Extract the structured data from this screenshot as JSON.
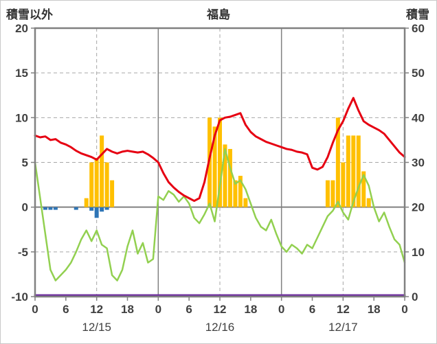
{
  "chart_data": {
    "type": "mixed",
    "title": "福島",
    "left_axis_label": "積雪以外",
    "right_axis_label": "積雪",
    "left_axis": {
      "min": -10,
      "max": 20,
      "ticks": [
        20,
        15,
        10,
        5,
        0,
        -5,
        -10
      ]
    },
    "right_axis": {
      "min": 0,
      "max": 60,
      "ticks": [
        60,
        50,
        40,
        30,
        20,
        10,
        0
      ]
    },
    "x_axis": {
      "hours_total": 72,
      "tick_hours": [
        0,
        6,
        12,
        18,
        24,
        30,
        36,
        42,
        48,
        54,
        60,
        66,
        72
      ],
      "tick_labels": [
        "0",
        "6",
        "12",
        "18",
        "0",
        "6",
        "12",
        "18",
        "0",
        "6",
        "12",
        "18",
        "0"
      ],
      "day_labels": [
        "12/15",
        "12/16",
        "12/17"
      ],
      "day_label_hours": [
        12,
        36,
        60
      ]
    },
    "grid": {
      "h_dashed": [
        15,
        10,
        5,
        -5
      ],
      "v_dashed": [
        12,
        36,
        60
      ],
      "v_solid": [
        24,
        48
      ]
    },
    "colors": {
      "frame": "#808080",
      "grid_dashed": "#a6a6a6",
      "red_line": "#e60012",
      "green_line": "#92d050",
      "orange_bars": "#ffc000",
      "blue_bars": "#2e75b6",
      "purple_line": "#7030a0"
    },
    "series": [
      {
        "name": "orange-bars",
        "type": "bar",
        "axis": "left",
        "color": "#ffc000",
        "values": [
          0,
          0,
          0,
          0,
          0,
          0,
          0,
          0,
          0,
          0,
          1,
          5,
          5.5,
          8,
          5,
          3,
          0,
          0,
          0,
          0,
          0,
          0,
          0,
          0,
          0,
          0,
          0,
          0,
          0,
          0,
          0,
          0,
          0,
          0,
          10,
          9,
          10,
          7,
          6.5,
          3,
          3.5,
          1,
          0,
          0,
          0,
          0,
          0,
          0,
          0,
          0,
          0,
          0,
          0,
          0,
          0,
          0,
          0,
          3,
          3,
          10,
          5,
          8,
          8,
          8,
          4,
          1,
          0,
          0,
          0,
          0,
          0,
          0,
          0
        ]
      },
      {
        "name": "blue-bars",
        "type": "bar",
        "axis": "left",
        "color": "#2e75b6",
        "values": [
          0,
          0,
          -0.3,
          -0.3,
          -0.3,
          0,
          0,
          0,
          -0.3,
          0,
          0,
          -0.4,
          -1.2,
          -0.5,
          -0.3,
          0,
          0,
          0,
          0,
          0,
          0,
          0,
          0,
          0,
          0,
          0,
          0,
          0,
          0,
          0,
          0,
          0,
          0,
          0,
          0,
          0,
          0,
          0,
          0,
          0,
          0,
          0,
          0,
          0,
          0,
          0,
          0,
          0,
          0,
          0,
          0,
          0,
          0,
          0,
          0,
          0,
          0,
          0,
          0,
          0,
          0,
          0,
          0,
          0,
          0,
          0,
          0,
          0,
          0,
          0,
          0,
          0,
          0
        ]
      },
      {
        "name": "green-line",
        "type": "line",
        "axis": "left",
        "color": "#92d050",
        "width": 2.5,
        "values": [
          5.0,
          1.0,
          -3.0,
          -7.0,
          -8.2,
          -7.6,
          -7.0,
          -6.2,
          -5.0,
          -3.6,
          -2.6,
          -3.8,
          -2.6,
          -4.2,
          -4.6,
          -7.6,
          -8.2,
          -7.0,
          -4.4,
          -2.6,
          -5.2,
          -4.0,
          -6.2,
          -5.8,
          1.2,
          0.8,
          1.8,
          1.4,
          0.6,
          1.2,
          0.4,
          -1.2,
          -1.8,
          -0.8,
          0.4,
          -1.6,
          2.4,
          6.5,
          4.4,
          2.6,
          3.0,
          2.0,
          0.4,
          -1.2,
          -2.2,
          -2.6,
          -1.4,
          -3.0,
          -4.4,
          -5.0,
          -4.2,
          -4.6,
          -5.2,
          -4.2,
          -4.6,
          -3.4,
          -2.2,
          -1.0,
          -0.4,
          0.6,
          -0.6,
          -1.4,
          0.6,
          2.2,
          3.6,
          2.4,
          0.0,
          -1.6,
          -0.6,
          -2.2,
          -3.6,
          -4.2,
          -6.2
        ]
      },
      {
        "name": "red-line",
        "type": "line",
        "axis": "left",
        "color": "#e60012",
        "width": 3,
        "values": [
          8.0,
          7.8,
          7.9,
          7.5,
          7.6,
          7.2,
          7.0,
          6.7,
          6.3,
          6.0,
          5.8,
          5.6,
          5.3,
          5.9,
          6.5,
          6.2,
          6.0,
          6.2,
          6.3,
          6.2,
          6.1,
          6.2,
          5.9,
          5.5,
          5.0,
          3.8,
          2.8,
          2.2,
          1.7,
          1.3,
          1.0,
          0.7,
          1.0,
          2.8,
          5.5,
          8.0,
          9.7,
          10.0,
          10.1,
          10.3,
          10.5,
          9.2,
          8.4,
          7.9,
          7.6,
          7.3,
          7.1,
          6.9,
          6.7,
          6.5,
          6.4,
          6.2,
          6.1,
          5.9,
          4.4,
          4.2,
          4.5,
          5.6,
          7.2,
          8.6,
          9.6,
          11.0,
          12.2,
          10.8,
          9.6,
          9.2,
          8.9,
          8.6,
          8.2,
          7.5,
          6.8,
          6.1,
          5.6
        ]
      },
      {
        "name": "snow-depth",
        "type": "line",
        "axis": "right",
        "color": "#7030a0",
        "width": 3,
        "constant": 0
      }
    ]
  }
}
